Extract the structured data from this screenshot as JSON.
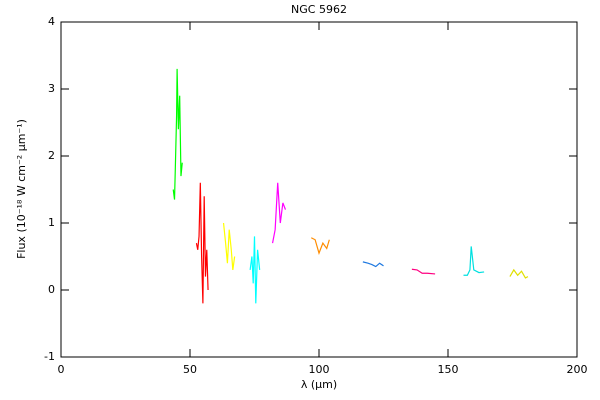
{
  "chart_data": {
    "type": "line",
    "title": "NGC 5962",
    "xlabel": "λ (μm)",
    "ylabel": "Flux (10⁻¹⁸ W cm⁻² μm⁻¹)",
    "xlim": [
      0,
      200
    ],
    "xticks": [
      0,
      50,
      100,
      150,
      200
    ],
    "ylim": [
      -1,
      4
    ],
    "yticks": [
      -1,
      0,
      1,
      2,
      3,
      4
    ],
    "series": [
      {
        "color": "#00ff00",
        "x": [
          43.5,
          44,
          44.3,
          44.8,
          45,
          45.5,
          46,
          46.5,
          47
        ],
        "values": [
          1.5,
          1.35,
          1.8,
          2.6,
          3.3,
          2.4,
          2.9,
          1.7,
          1.9
        ]
      },
      {
        "color": "#ff0000",
        "x": [
          52.5,
          53,
          53.5,
          54,
          54.5,
          55,
          55.5,
          56,
          56.5,
          57
        ],
        "values": [
          0.7,
          0.6,
          0.8,
          1.6,
          0.5,
          -0.2,
          1.4,
          0.2,
          0.6,
          0
        ]
      },
      {
        "color": "#ffff00",
        "x": [
          63,
          63.8,
          64.5,
          65.2,
          66,
          66.6,
          67.3
        ],
        "values": [
          1.0,
          0.7,
          0.4,
          0.9,
          0.6,
          0.3,
          0.5
        ]
      },
      {
        "color": "#00ffff",
        "x": [
          73.3,
          74,
          74.5,
          75,
          75.5,
          76.2,
          77
        ],
        "values": [
          0.3,
          0.5,
          0.1,
          0.8,
          -0.2,
          0.6,
          0.3
        ]
      },
      {
        "color": "#ff00ff",
        "x": [
          82,
          83,
          84,
          85,
          86,
          87
        ],
        "values": [
          0.7,
          0.9,
          1.6,
          1.0,
          1.3,
          1.2
        ]
      },
      {
        "color": "#ff8c00",
        "x": [
          97,
          98.5,
          100,
          101.5,
          103,
          104
        ],
        "values": [
          0.78,
          0.75,
          0.55,
          0.7,
          0.62,
          0.75
        ]
      },
      {
        "color": "#1e78e0",
        "x": [
          117,
          119,
          120.5,
          122,
          123.5,
          125
        ],
        "values": [
          0.42,
          0.4,
          0.38,
          0.35,
          0.4,
          0.36
        ]
      },
      {
        "color": "#ff0080",
        "x": [
          136,
          138,
          140,
          142,
          145
        ],
        "values": [
          0.31,
          0.3,
          0.25,
          0.25,
          0.24
        ]
      },
      {
        "color": "#00e0e0",
        "x": [
          156,
          157.5,
          158.5,
          159,
          160,
          162,
          164
        ],
        "values": [
          0.22,
          0.22,
          0.3,
          0.65,
          0.3,
          0.26,
          0.27
        ]
      },
      {
        "color": "#e0e000",
        "x": [
          174,
          175.5,
          177,
          178.5,
          180,
          181
        ],
        "values": [
          0.2,
          0.3,
          0.22,
          0.28,
          0.18,
          0.2
        ]
      }
    ]
  }
}
